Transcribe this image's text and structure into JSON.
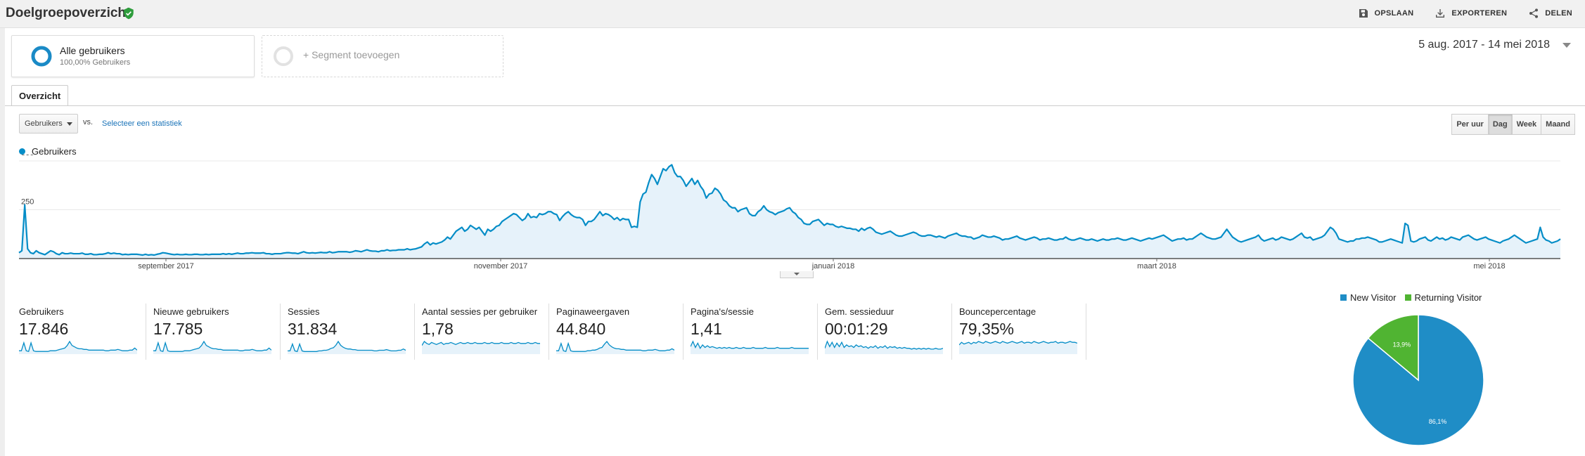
{
  "header": {
    "title": "Doelgroepoverzicht",
    "actions": {
      "save": "OPSLAAN",
      "export": "EXPORTEREN",
      "share": "DELEN"
    }
  },
  "segments": {
    "active": {
      "name": "Alle gebruikers",
      "sub": "100,00% Gebruikers"
    },
    "add": "+ Segment toevoegen"
  },
  "date_range": "5 aug. 2017 - 14 mei 2018",
  "tabs": [
    "Overzicht"
  ],
  "controls": {
    "metric_select": "Gebruikers",
    "vs": "vs.",
    "select_stat": "Selecteer een statistiek",
    "granularity": [
      "Per uur",
      "Dag",
      "Week",
      "Maand"
    ],
    "granularity_active": "Dag"
  },
  "chart_data": [
    {
      "type": "area",
      "series": [
        {
          "name": "Gebruikers",
          "values": [
            30,
            40,
            275,
            50,
            30,
            25,
            40,
            30,
            25,
            20,
            30,
            40,
            35,
            25,
            20,
            30,
            25,
            25,
            28,
            25,
            25,
            25,
            28,
            22,
            22,
            25,
            20,
            20,
            22,
            22,
            25,
            30,
            25,
            28,
            25,
            25,
            20,
            22,
            20,
            22,
            22,
            22,
            20,
            18,
            22,
            18,
            20,
            18,
            22,
            25,
            30,
            28,
            25,
            22,
            20,
            22,
            20,
            20,
            22,
            20,
            20,
            22,
            22,
            20,
            20,
            22,
            20,
            22,
            22,
            22,
            22,
            25,
            22,
            25,
            22,
            25,
            28,
            25,
            25,
            28,
            28,
            30,
            28,
            28,
            28,
            30,
            25,
            25,
            22,
            25,
            25,
            25,
            28,
            30,
            30,
            28,
            28,
            25,
            30,
            35,
            30,
            28,
            30,
            28,
            30,
            32,
            30,
            30,
            35,
            30,
            32,
            35,
            35,
            35,
            35,
            32,
            35,
            40,
            38,
            35,
            40,
            45,
            40,
            38,
            38,
            35,
            40,
            40,
            45,
            40,
            42,
            42,
            45,
            45,
            45,
            50,
            45,
            48,
            50,
            55,
            60,
            75,
            85,
            70,
            80,
            75,
            80,
            85,
            95,
            110,
            100,
            120,
            140,
            150,
            160,
            140,
            150,
            170,
            160,
            150,
            160,
            140,
            120,
            150,
            140,
            150,
            165,
            170,
            190,
            200,
            210,
            220,
            230,
            225,
            210,
            195,
            205,
            230,
            210,
            215,
            210,
            230,
            225,
            230,
            240,
            240,
            230,
            225,
            195,
            215,
            230,
            240,
            225,
            215,
            210,
            210,
            200,
            170,
            190,
            190,
            200,
            220,
            240,
            220,
            230,
            225,
            215,
            200,
            210,
            195,
            205,
            200,
            200,
            160,
            165,
            160,
            290,
            330,
            340,
            390,
            430,
            410,
            380,
            420,
            460,
            450,
            470,
            480,
            440,
            420,
            420,
            400,
            370,
            390,
            410,
            380,
            400,
            370,
            350,
            310,
            330,
            335,
            360,
            350,
            330,
            300,
            290,
            270,
            260,
            260,
            240,
            250,
            255,
            260,
            230,
            220,
            220,
            240,
            250,
            270,
            250,
            240,
            235,
            225,
            235,
            240,
            245,
            255,
            260,
            240,
            230,
            210,
            200,
            180,
            175,
            175,
            190,
            195,
            200,
            185,
            170,
            180,
            175,
            175,
            165,
            160,
            165,
            160,
            155,
            155,
            150,
            150,
            140,
            155,
            145,
            155,
            160,
            150,
            135,
            130,
            125,
            130,
            135,
            140,
            130,
            120,
            115,
            115,
            120,
            125,
            130,
            135,
            130,
            120,
            115,
            115,
            120,
            120,
            115,
            110,
            115,
            110,
            105,
            115,
            120,
            125,
            130,
            120,
            115,
            115,
            110,
            110,
            100,
            105,
            110,
            120,
            115,
            110,
            110,
            115,
            110,
            105,
            95,
            100,
            100,
            105,
            110,
            115,
            105,
            100,
            95,
            100,
            105,
            110,
            105,
            95,
            100,
            100,
            105,
            100,
            95,
            95,
            100,
            100,
            110,
            100,
            95,
            95,
            100,
            105,
            100,
            95,
            95,
            100,
            95,
            90,
            95,
            100,
            95,
            95,
            100,
            100,
            105,
            100,
            95,
            95,
            100,
            105,
            100,
            95,
            90,
            95,
            100,
            105,
            100,
            105,
            110,
            115,
            120,
            110,
            100,
            90,
            95,
            100,
            100,
            105,
            95,
            100,
            100,
            110,
            120,
            130,
            120,
            110,
            105,
            100,
            100,
            105,
            110,
            130,
            150,
            130,
            110,
            100,
            90,
            85,
            90,
            95,
            100,
            105,
            110,
            120,
            100,
            90,
            95,
            100,
            105,
            95,
            100,
            110,
            105,
            100,
            95,
            100,
            110,
            120,
            130,
            110,
            105,
            110,
            95,
            100,
            105,
            110,
            120,
            140,
            160,
            150,
            130,
            100,
            95,
            90,
            85,
            90,
            90,
            100,
            100,
            105,
            105,
            110,
            105,
            100,
            95,
            85,
            85,
            90,
            95,
            100,
            95,
            90,
            85,
            80,
            180,
            170,
            90,
            85,
            90,
            100,
            105,
            110,
            95,
            90,
            100,
            110,
            100,
            105,
            95,
            100,
            110,
            105,
            100,
            95,
            110,
            115,
            120,
            110,
            100,
            95,
            100,
            105,
            110,
            100,
            95,
            90,
            85,
            80,
            90,
            95,
            100,
            110,
            120,
            110,
            100,
            90,
            80,
            85,
            90,
            95,
            100,
            160,
            110,
            95,
            90,
            80,
            85,
            90,
            100
          ]
        }
      ],
      "x_ticks": [
        "september 2017",
        "november 2017",
        "januari 2018",
        "maart 2018",
        "mei 2018"
      ],
      "y_ticks": [
        500,
        250
      ],
      "ylim": [
        0,
        500
      ]
    },
    {
      "type": "pie",
      "series": [
        {
          "name": "New Visitor",
          "value": 86.1,
          "label": "86,1%"
        },
        {
          "name": "Returning Visitor",
          "value": 13.9,
          "label": "13,9%"
        }
      ],
      "colors": [
        "#1f8dc6",
        "#50b432"
      ],
      "legend": "top"
    }
  ],
  "metrics": [
    {
      "name": "Gebruikers",
      "value": "17.846",
      "spark": [
        4,
        4,
        16,
        4,
        3,
        16,
        4,
        3,
        3,
        3,
        3,
        3,
        3,
        4,
        4,
        4,
        5,
        6,
        7,
        8,
        12,
        18,
        12,
        10,
        8,
        7,
        7,
        6,
        6,
        5,
        5,
        5,
        5,
        5,
        5,
        5,
        4,
        4,
        5,
        5,
        5,
        6,
        5,
        4,
        4,
        4,
        5,
        5,
        8,
        5
      ]
    },
    {
      "name": "Nieuwe gebruikers",
      "value": "17.785",
      "spark": [
        4,
        4,
        16,
        4,
        3,
        16,
        4,
        3,
        3,
        3,
        3,
        3,
        3,
        4,
        4,
        4,
        5,
        6,
        7,
        8,
        12,
        18,
        12,
        10,
        8,
        7,
        7,
        6,
        6,
        5,
        5,
        5,
        5,
        5,
        5,
        5,
        4,
        4,
        5,
        5,
        5,
        6,
        5,
        4,
        4,
        4,
        5,
        5,
        8,
        5
      ]
    },
    {
      "name": "Sessies",
      "value": "31.834",
      "spark": [
        4,
        4,
        15,
        4,
        3,
        15,
        4,
        3,
        3,
        3,
        3,
        3,
        3,
        4,
        4,
        5,
        5,
        6,
        8,
        9,
        13,
        19,
        13,
        10,
        8,
        7,
        7,
        6,
        6,
        5,
        5,
        5,
        5,
        5,
        5,
        5,
        4,
        4,
        5,
        5,
        5,
        6,
        5,
        4,
        4,
        4,
        5,
        5,
        7,
        5
      ]
    },
    {
      "name": "Aantal sessies per gebruiker",
      "value": "1,78",
      "spark": [
        8,
        12,
        10,
        9,
        11,
        10,
        9,
        10,
        11,
        9,
        10,
        10,
        11,
        10,
        9,
        10,
        11,
        10,
        10,
        11,
        10,
        10,
        11,
        10,
        10,
        10,
        11,
        10,
        10,
        11,
        10,
        10,
        10,
        11,
        10,
        10,
        10,
        11,
        10,
        10,
        11,
        10,
        10,
        10,
        11,
        10,
        10,
        11,
        10,
        10
      ]
    },
    {
      "name": "Paginaweergaven",
      "value": "44.840",
      "spark": [
        4,
        4,
        15,
        4,
        3,
        15,
        4,
        3,
        3,
        3,
        3,
        3,
        3,
        4,
        4,
        5,
        5,
        6,
        8,
        9,
        14,
        18,
        13,
        10,
        8,
        7,
        7,
        6,
        6,
        5,
        5,
        5,
        5,
        5,
        5,
        5,
        4,
        4,
        5,
        5,
        5,
        6,
        5,
        4,
        4,
        4,
        5,
        5,
        7,
        5
      ]
    },
    {
      "name": "Pagina's/sessie",
      "value": "1,41",
      "spark": [
        8,
        14,
        7,
        12,
        6,
        10,
        7,
        9,
        7,
        8,
        7,
        6,
        7,
        6,
        7,
        6,
        7,
        6,
        6,
        7,
        6,
        6,
        7,
        6,
        6,
        6,
        7,
        6,
        6,
        6,
        6,
        7,
        6,
        6,
        6,
        6,
        7,
        6,
        6,
        6,
        6,
        6,
        7,
        6,
        6,
        6,
        6,
        6,
        6,
        6
      ]
    },
    {
      "name": "Gem. sessieduur",
      "value": "00:01:29",
      "spark": [
        6,
        14,
        8,
        13,
        7,
        12,
        8,
        13,
        7,
        10,
        8,
        9,
        7,
        10,
        8,
        9,
        7,
        8,
        6,
        8,
        7,
        9,
        6,
        8,
        7,
        9,
        6,
        8,
        7,
        8,
        6,
        7,
        6,
        7,
        6,
        6,
        5,
        6,
        5,
        6,
        5,
        6,
        5,
        6,
        5,
        5,
        6,
        5,
        5,
        6
      ]
    },
    {
      "name": "Bouncepercentage",
      "value": "79,35%",
      "spark": [
        10,
        13,
        11,
        12,
        13,
        11,
        13,
        12,
        14,
        13,
        12,
        14,
        13,
        12,
        13,
        14,
        13,
        12,
        14,
        13,
        12,
        13,
        14,
        13,
        12,
        13,
        14,
        12,
        13,
        13,
        12,
        14,
        13,
        12,
        13,
        14,
        13,
        12,
        13,
        13,
        14,
        12,
        13,
        13,
        12,
        13,
        14,
        13,
        13,
        12
      ]
    }
  ]
}
